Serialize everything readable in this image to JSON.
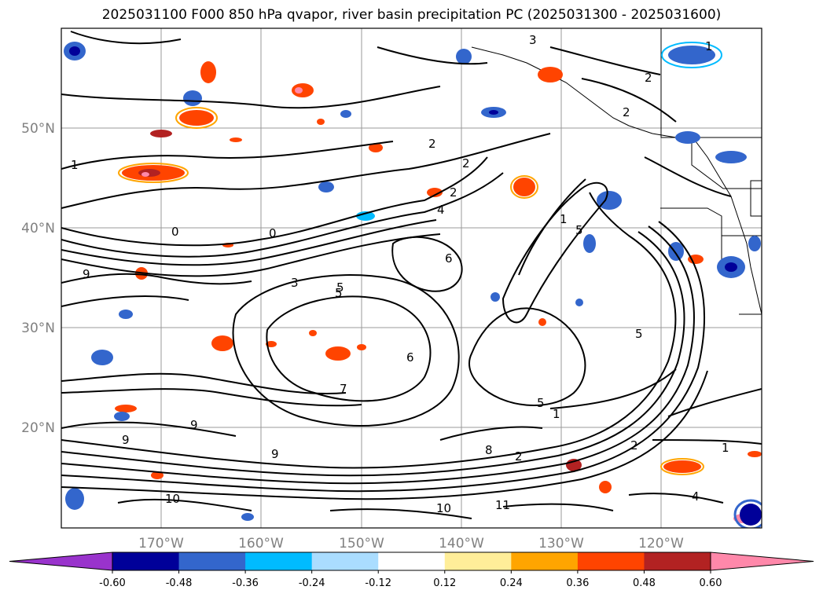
{
  "title": "2025031100 F000 850 hPa qvapor, river basin precipitation PC (2025031300 - 2025031600)",
  "map": {
    "lat_labels": [
      "50°N",
      "40°N",
      "30°N",
      "20°N"
    ],
    "lon_labels": [
      "170°W",
      "160°W",
      "150°W",
      "140°W",
      "130°W",
      "120°W"
    ],
    "grid": true,
    "contour_labels": [
      "1",
      "2",
      "3",
      "4",
      "5",
      "6",
      "7",
      "8",
      "9",
      "10",
      "11",
      "0"
    ]
  },
  "colorbar": {
    "ticks": [
      "-0.60",
      "-0.48",
      "-0.36",
      "-0.24",
      "-0.12",
      "0.12",
      "0.24",
      "0.36",
      "0.48",
      "0.60"
    ],
    "colors": [
      "#9933cc",
      "#000099",
      "#3366cc",
      "#00bbff",
      "#aaddff",
      "#ffffff",
      "#ffee99",
      "#ffa500",
      "#ff4400",
      "#b22222",
      "#ff88aa"
    ],
    "extend": "both"
  }
}
